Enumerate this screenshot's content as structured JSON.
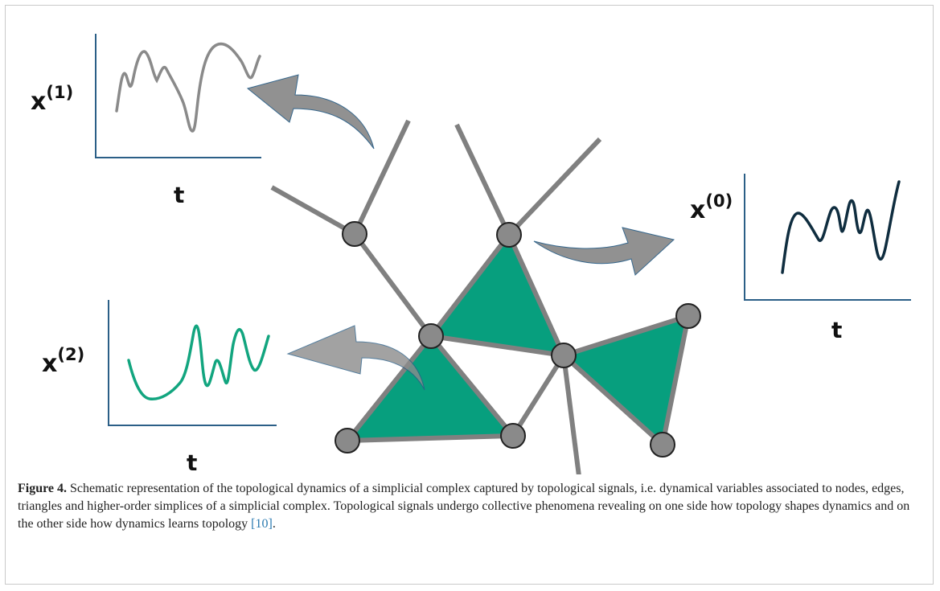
{
  "figure": {
    "panels": [
      {
        "var_base": "x",
        "var_sup": "(1)",
        "t_label": "t",
        "line_color": "#8a8a8a"
      },
      {
        "var_base": "x",
        "var_sup": "(0)",
        "t_label": "t",
        "line_color": "#0f2d3f"
      },
      {
        "var_base": "x",
        "var_sup": "(2)",
        "t_label": "t",
        "line_color": "#12a57f"
      }
    ],
    "triangle_color": "#079f7e",
    "edge_color": "#808080",
    "node_color": "#8a8a8a",
    "axis_color": "#2b5f87",
    "arrow_color": "#8c8c8c"
  },
  "caption": {
    "label": "Figure 4.",
    "text": " Schematic representation of the topological dynamics of a simplicial complex captured by topological signals, i.e. dynamical variables associated to nodes, edges, triangles and higher-order simplices of a simplicial complex. Topological signals undergo collective phenomena revealing on one side how topology shapes dynamics and on the other side how dynamics learns topology ",
    "citation": "[10]",
    "end": "."
  }
}
